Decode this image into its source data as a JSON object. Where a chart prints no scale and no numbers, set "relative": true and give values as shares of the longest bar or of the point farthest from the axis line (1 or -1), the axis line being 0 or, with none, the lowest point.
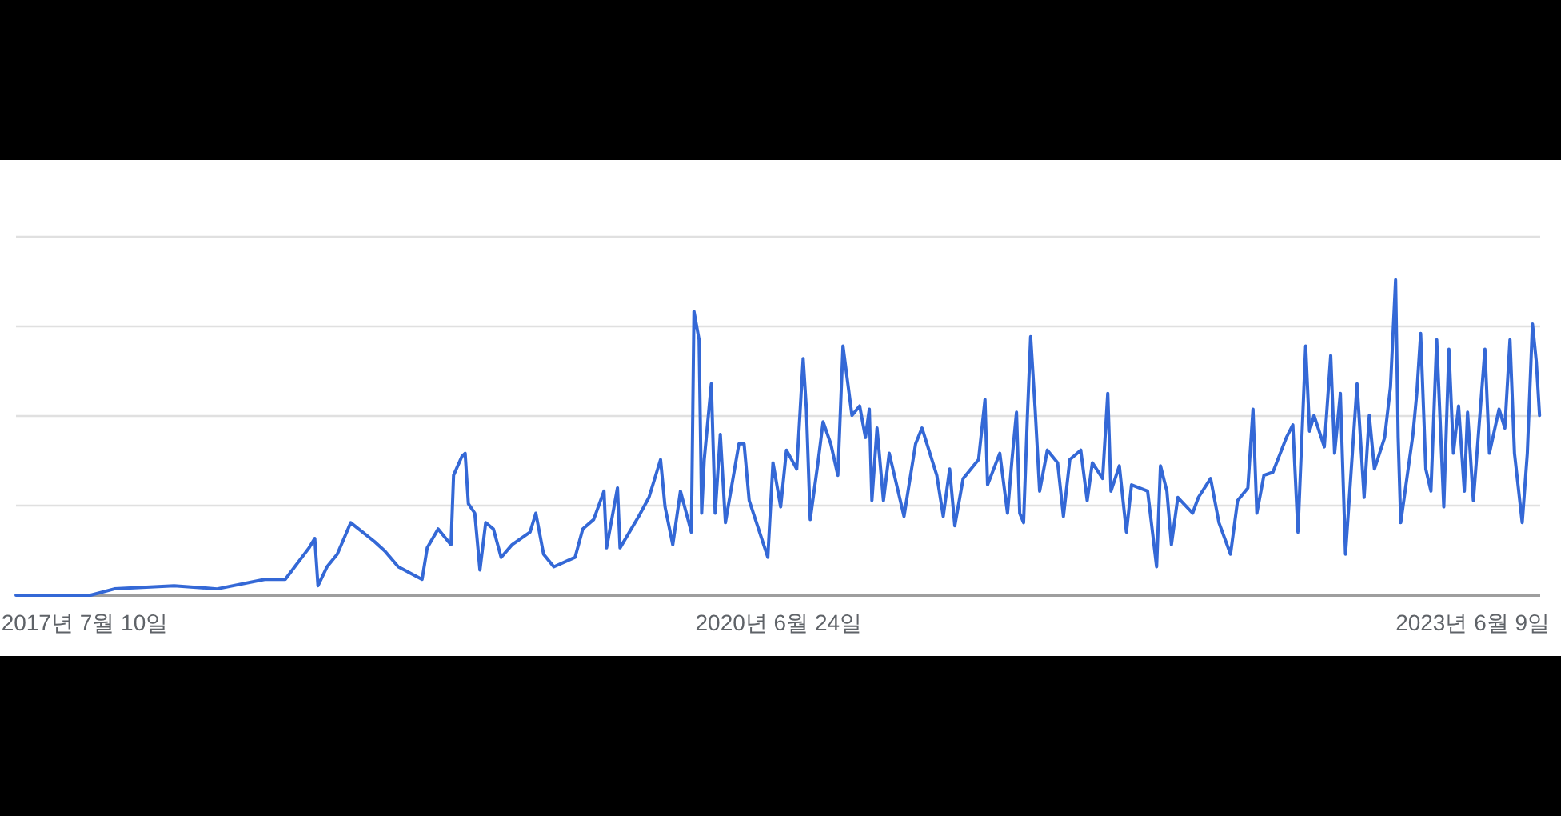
{
  "chart_data": {
    "type": "line",
    "relative": true,
    "color": "#3468d6",
    "grid": "y",
    "xlim": [
      "2017-03-25",
      "2023-09-22"
    ],
    "xticks": [
      {
        "value": "2017-07-10",
        "label": "2017년 7월 10일"
      },
      {
        "value": "2020-06-24",
        "label": "2020년 6월 24일"
      },
      {
        "value": "2023-06-09",
        "label": "2023년 6월 9일"
      }
    ],
    "x": [
      "2017-03-25",
      "2017-07-19",
      "2017-08-25",
      "2017-11-26",
      "2018-02-01",
      "2018-04-16",
      "2018-05-18",
      "2018-06-24",
      "2018-07-03",
      "2018-07-08",
      "2018-07-22",
      "2018-08-07",
      "2018-08-28",
      "2018-10-04",
      "2018-10-20",
      "2018-11-10",
      "2018-12-17",
      "2018-12-25",
      "2019-01-11",
      "2019-01-31",
      "2019-02-04",
      "2019-02-17",
      "2019-02-22",
      "2019-02-27",
      "2019-03-09",
      "2019-03-17",
      "2019-03-26",
      "2019-04-07",
      "2019-04-19",
      "2019-05-06",
      "2019-06-03",
      "2019-06-12",
      "2019-06-24",
      "2019-07-10",
      "2019-08-12",
      "2019-08-24",
      "2019-09-10",
      "2019-09-26",
      "2019-09-30",
      "2019-10-17",
      "2019-10-21",
      "2019-11-19",
      "2019-12-05",
      "2019-12-23",
      "2019-12-30",
      "2020-01-11",
      "2020-01-23",
      "2020-02-09",
      "2020-02-13",
      "2020-02-21",
      "2020-02-25",
      "2020-02-29",
      "2020-03-11",
      "2020-03-17",
      "2020-03-25",
      "2020-04-02",
      "2020-04-23",
      "2020-05-01",
      "2020-05-09",
      "2020-06-07",
      "2020-06-15",
      "2020-06-27",
      "2020-07-06",
      "2020-07-22",
      "2020-08-01",
      "2020-08-06",
      "2020-08-12",
      "2020-08-24",
      "2020-09-01",
      "2020-09-13",
      "2020-09-24",
      "2020-10-02",
      "2020-10-16",
      "2020-10-28",
      "2020-11-06",
      "2020-11-12",
      "2020-11-16",
      "2020-11-24",
      "2020-12-04",
      "2020-12-13",
      "2021-01-05",
      "2021-01-23",
      "2021-02-02",
      "2021-02-25",
      "2021-03-07",
      "2021-03-17",
      "2021-03-25",
      "2021-04-07",
      "2021-05-01",
      "2021-05-11",
      "2021-05-15",
      "2021-06-03",
      "2021-06-15",
      "2021-06-22",
      "2021-06-29",
      "2021-07-04",
      "2021-07-10",
      "2021-07-16",
      "2021-07-21",
      "2021-07-28",
      "2021-08-04",
      "2021-08-16",
      "2021-09-01",
      "2021-09-10",
      "2021-09-20",
      "2021-10-07",
      "2021-10-17",
      "2021-10-25",
      "2021-11-10",
      "2021-11-18",
      "2021-11-23",
      "2021-12-06",
      "2021-12-17",
      "2021-12-25",
      "2022-01-19",
      "2022-02-02",
      "2022-02-08",
      "2022-02-18",
      "2022-02-25",
      "2022-03-07",
      "2022-03-30",
      "2022-04-08",
      "2022-04-27",
      "2022-05-10",
      "2022-05-28",
      "2022-06-08",
      "2022-06-24",
      "2022-07-02",
      "2022-07-08",
      "2022-07-19",
      "2022-08-02",
      "2022-08-23",
      "2022-09-02",
      "2022-09-10",
      "2022-09-22",
      "2022-09-28",
      "2022-10-05",
      "2022-10-21",
      "2022-10-31",
      "2022-11-06",
      "2022-11-15",
      "2022-11-23",
      "2022-12-01",
      "2022-12-11",
      "2022-12-22",
      "2022-12-30",
      "2023-01-07",
      "2023-01-23",
      "2023-02-01",
      "2023-02-09",
      "2023-02-13",
      "2023-02-17",
      "2023-03-08",
      "2023-03-14",
      "2023-03-20",
      "2023-03-28",
      "2023-04-05",
      "2023-04-14",
      "2023-04-25",
      "2023-05-03",
      "2023-05-10",
      "2023-05-18",
      "2023-05-27",
      "2023-06-01",
      "2023-06-10",
      "2023-06-28",
      "2023-07-05",
      "2023-07-20",
      "2023-07-29",
      "2023-08-06",
      "2023-08-13",
      "2023-08-25",
      "2023-09-02",
      "2023-09-10",
      "2023-09-16",
      "2023-09-21"
    ],
    "values": [
      0,
      0,
      0.02,
      0.03,
      0.02,
      0.05,
      0.05,
      0.15,
      0.18,
      0.03,
      0.09,
      0.13,
      0.23,
      0.17,
      0.14,
      0.09,
      0.05,
      0.15,
      0.21,
      0.16,
      0.38,
      0.44,
      0.45,
      0.29,
      0.26,
      0.08,
      0.23,
      0.21,
      0.12,
      0.16,
      0.2,
      0.26,
      0.13,
      0.09,
      0.12,
      0.21,
      0.24,
      0.33,
      0.15,
      0.34,
      0.15,
      0.25,
      0.31,
      0.43,
      0.28,
      0.16,
      0.33,
      0.2,
      0.9,
      0.81,
      0.26,
      0.43,
      0.67,
      0.26,
      0.51,
      0.23,
      0.48,
      0.48,
      0.3,
      0.12,
      0.42,
      0.28,
      0.46,
      0.4,
      0.75,
      0.59,
      0.24,
      0.42,
      0.55,
      0.48,
      0.38,
      0.79,
      0.57,
      0.6,
      0.5,
      0.59,
      0.3,
      0.53,
      0.3,
      0.45,
      0.25,
      0.48,
      0.53,
      0.38,
      0.25,
      0.4,
      0.22,
      0.37,
      0.43,
      0.62,
      0.35,
      0.45,
      0.26,
      0.43,
      0.58,
      0.26,
      0.23,
      0.57,
      0.82,
      0.59,
      0.33,
      0.46,
      0.42,
      0.25,
      0.43,
      0.46,
      0.3,
      0.42,
      0.37,
      0.64,
      0.33,
      0.41,
      0.2,
      0.35,
      0.33,
      0.09,
      0.41,
      0.33,
      0.16,
      0.31,
      0.26,
      0.31,
      0.37,
      0.23,
      0.13,
      0.3,
      0.34,
      0.59,
      0.26,
      0.38,
      0.39,
      0.5,
      0.54,
      0.2,
      0.79,
      0.52,
      0.57,
      0.47,
      0.76,
      0.45,
      0.64,
      0.13,
      0.37,
      0.67,
      0.31,
      0.57,
      0.4,
      0.5,
      0.66,
      1.0,
      0.5,
      0.23,
      0.51,
      0.64,
      0.83,
      0.4,
      0.33,
      0.81,
      0.28,
      0.78,
      0.45,
      0.6,
      0.33,
      0.58,
      0.3,
      0.78,
      0.45,
      0.59,
      0.53,
      0.81,
      0.45,
      0.23,
      0.45,
      0.86,
      0.74,
      0.57
    ]
  }
}
